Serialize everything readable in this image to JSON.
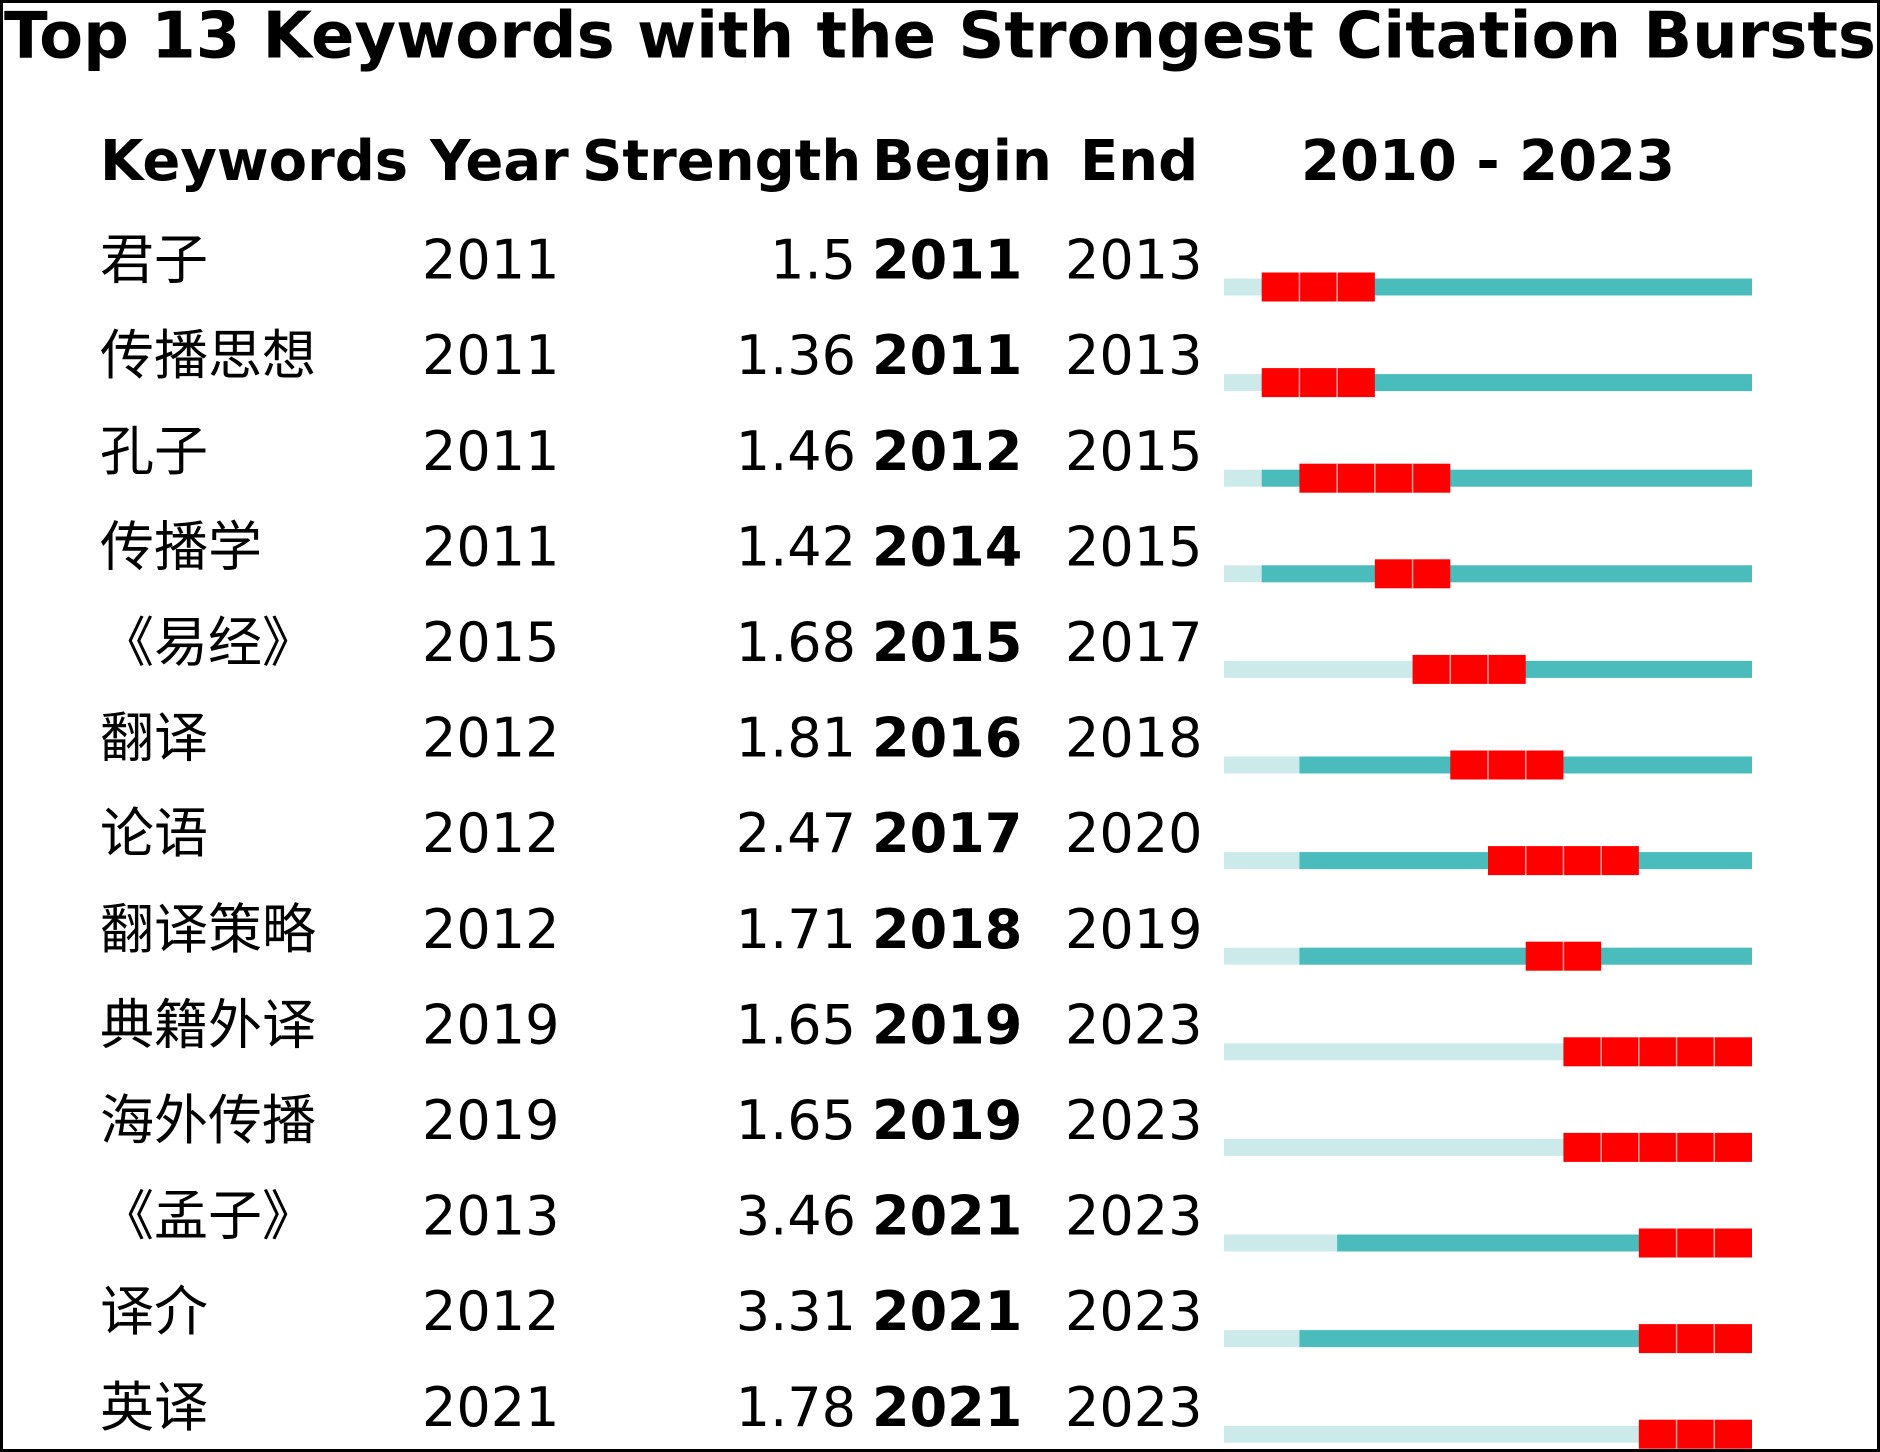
{
  "title": "Top 13 Keywords with the Strongest Citation Bursts",
  "table": {
    "headers": [
      "Keywords",
      "Year",
      "Strength",
      "Begin",
      "End"
    ],
    "range_label": "2010 - 2023",
    "range": [
      2010,
      2023
    ],
    "rows": [
      {
        "keyword": "君子",
        "year": 2011,
        "strength": 1.5,
        "begin": 2011,
        "end": 2013
      },
      {
        "keyword": "传播思想",
        "year": 2011,
        "strength": 1.36,
        "begin": 2011,
        "end": 2013
      },
      {
        "keyword": "孔子",
        "year": 2011,
        "strength": 1.46,
        "begin": 2012,
        "end": 2015
      },
      {
        "keyword": "传播学",
        "year": 2011,
        "strength": 1.42,
        "begin": 2014,
        "end": 2015
      },
      {
        "keyword": "《易经》",
        "year": 2015,
        "strength": 1.68,
        "begin": 2015,
        "end": 2017
      },
      {
        "keyword": "翻译",
        "year": 2012,
        "strength": 1.81,
        "begin": 2016,
        "end": 2018
      },
      {
        "keyword": "论语",
        "year": 2012,
        "strength": 2.47,
        "begin": 2017,
        "end": 2020
      },
      {
        "keyword": "翻译策略",
        "year": 2012,
        "strength": 1.71,
        "begin": 2018,
        "end": 2019
      },
      {
        "keyword": "典籍外译",
        "year": 2019,
        "strength": 1.65,
        "begin": 2019,
        "end": 2023
      },
      {
        "keyword": "海外传播",
        "year": 2019,
        "strength": 1.65,
        "begin": 2019,
        "end": 2023
      },
      {
        "keyword": "《孟子》",
        "year": 2013,
        "strength": 3.46,
        "begin": 2021,
        "end": 2023
      },
      {
        "keyword": "译介",
        "year": 2012,
        "strength": 3.31,
        "begin": 2021,
        "end": 2023
      },
      {
        "keyword": "英译",
        "year": 2021,
        "strength": 1.78,
        "begin": 2021,
        "end": 2023
      }
    ]
  }
}
